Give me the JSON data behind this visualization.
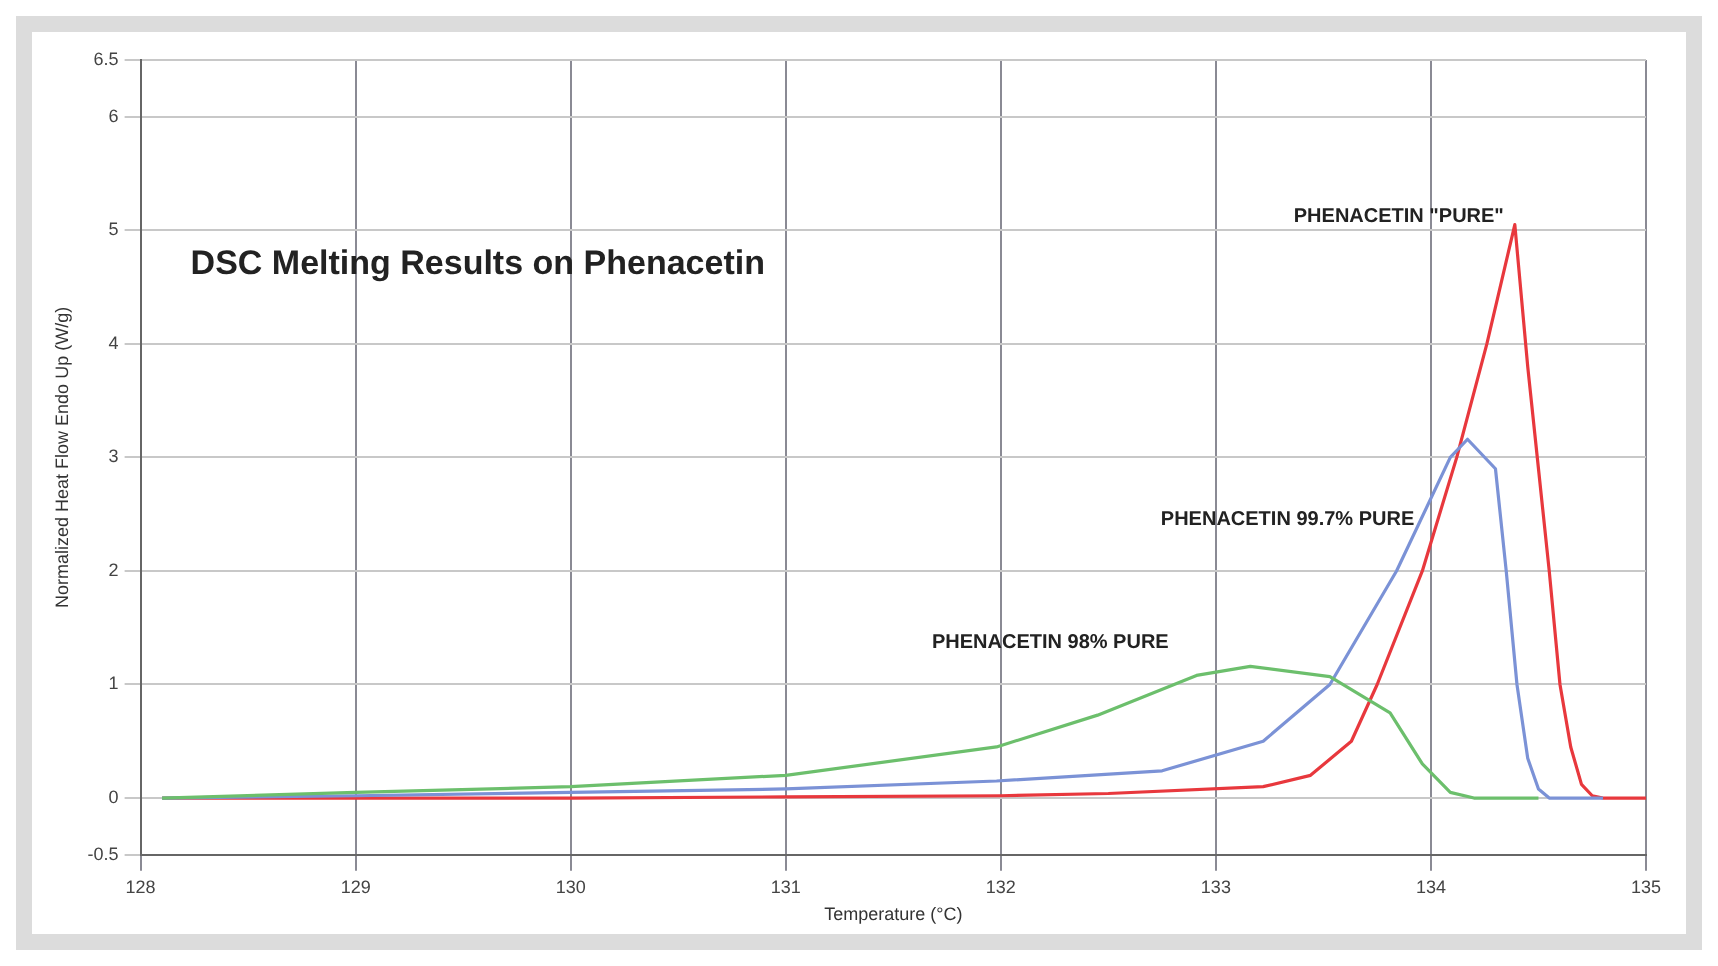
{
  "chart_data": {
    "type": "line",
    "title": "DSC Melting Results on Phenacetin",
    "xlabel": "Temperature (°C)",
    "ylabel": "Normalized Heat Flow Endo Up (W/g)",
    "xlim": [
      128,
      135
    ],
    "xticks": [
      128,
      129,
      130,
      131,
      132,
      133,
      134,
      135
    ],
    "ylim": [
      -0.5,
      6.5
    ],
    "yticks": [
      -0.5,
      0,
      1,
      2,
      3,
      4,
      5,
      6,
      6.5
    ],
    "grid": true,
    "legend": false,
    "marker": "none",
    "line_style": "solid",
    "series": [
      {
        "name": "PHENACETIN 98% PURE",
        "color": "#6cbf6c",
        "x": [
          128.1,
          129,
          130,
          131,
          131.98,
          132.45,
          132.91,
          133.16,
          133.53,
          133.81,
          133.96,
          134.09,
          134.2,
          134.5
        ],
        "values": [
          0,
          0.05,
          0.1,
          0.2,
          0.45,
          0.73,
          1.08,
          1.16,
          1.07,
          0.75,
          0.3,
          0.05,
          0,
          0
        ]
      },
      {
        "name": "PHENACETIN 99.7% PURE",
        "color": "#7b92d6",
        "x": [
          128.1,
          129,
          130,
          131,
          131.98,
          132.75,
          133.22,
          133.53,
          133.84,
          134.09,
          134.17,
          134.3,
          134.35,
          134.4,
          134.45,
          134.5,
          134.55,
          134.8
        ],
        "values": [
          0,
          0.02,
          0.05,
          0.08,
          0.15,
          0.24,
          0.5,
          1,
          2,
          3,
          3.16,
          2.9,
          2,
          1,
          0.35,
          0.08,
          0,
          0
        ]
      },
      {
        "name": "PHENACETIN \"PURE\"",
        "color": "#e8383d",
        "x": [
          128.1,
          130,
          131,
          132,
          132.5,
          133.22,
          133.44,
          133.63,
          133.75,
          133.96,
          134.12,
          134.26,
          134.39,
          134.45,
          134.5,
          134.55,
          134.6,
          134.65,
          134.7,
          134.75,
          134.8,
          135
        ],
        "values": [
          0,
          0,
          0.01,
          0.02,
          0.04,
          0.1,
          0.2,
          0.5,
          1,
          2,
          3,
          4,
          5.05,
          3.8,
          2.9,
          2,
          1,
          0.45,
          0.12,
          0.02,
          0,
          0
        ]
      }
    ]
  }
}
